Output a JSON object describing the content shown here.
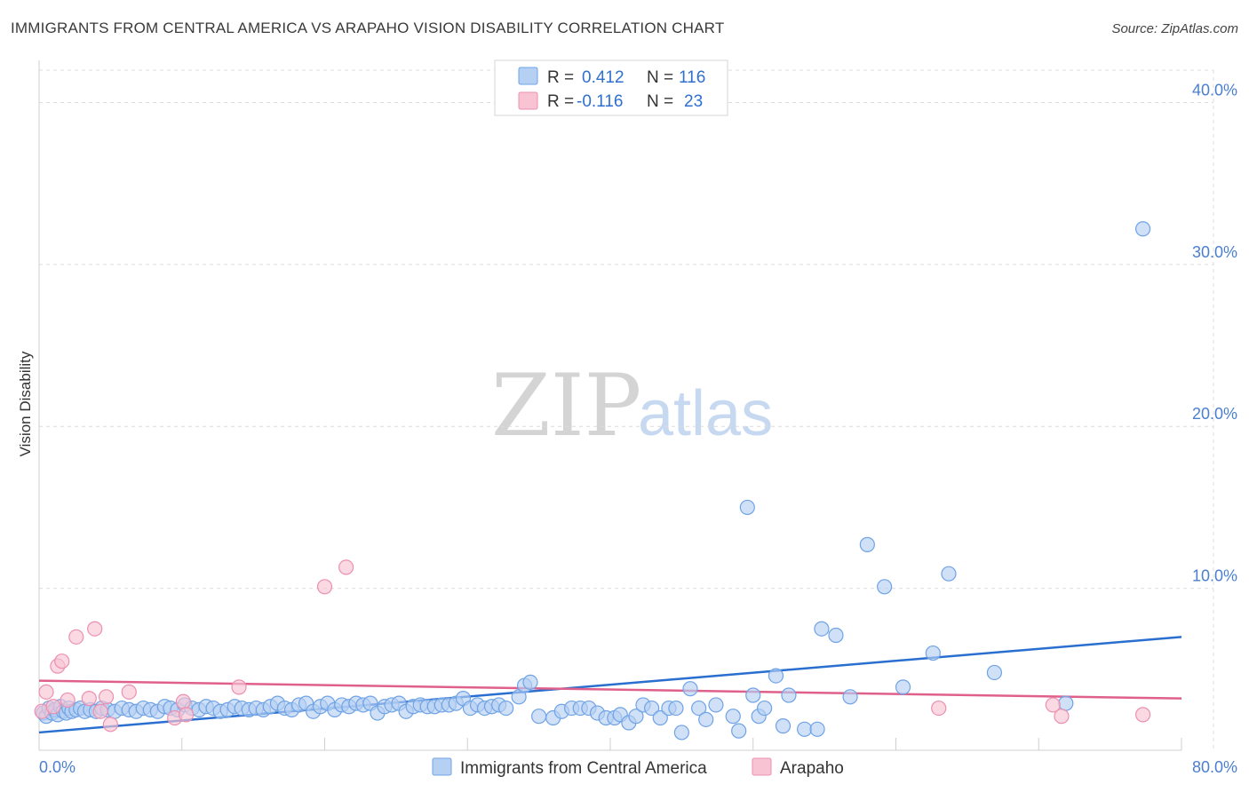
{
  "header": {
    "title": "IMMIGRANTS FROM CENTRAL AMERICA VS ARAPAHO VISION DISABILITY CORRELATION CHART",
    "source": "Source: ZipAtlas.com"
  },
  "watermark": {
    "zip": "ZIP",
    "atlas": "atlas"
  },
  "legend": {
    "r_label": "R =",
    "n_label": "N =",
    "rows": [
      {
        "r": "0.412",
        "n": "116",
        "color": "#a9c8f0"
      },
      {
        "r": "-0.116",
        "n": "23",
        "color": "#f6b9cc"
      }
    ]
  },
  "bottom_legend": [
    {
      "label": "Immigrants from Central America",
      "color": "#a9c8f0"
    },
    {
      "label": "Arapaho",
      "color": "#f6b9cc"
    }
  ],
  "chart_data": {
    "type": "scatter",
    "title": "IMMIGRANTS FROM CENTRAL AMERICA VS ARAPAHO VISION DISABILITY CORRELATION CHART",
    "xlabel": "",
    "ylabel": "Vision Disability",
    "xlim": [
      0,
      80
    ],
    "ylim": [
      0,
      42
    ],
    "x_tick_labels": [
      "0.0%",
      "80.0%"
    ],
    "y_ticks": [
      10,
      20,
      30,
      40
    ],
    "y_tick_labels": [
      "10.0%",
      "20.0%",
      "30.0%",
      "40.0%"
    ],
    "grid": true,
    "series": [
      {
        "name": "Immigrants from Central America",
        "color": "#6fa3e6",
        "fill": "#b5d0f3",
        "trend": {
          "x0": 0,
          "y0": 1.1,
          "x1": 80,
          "y1": 7.0,
          "color": "#2a6fd0"
        },
        "points": [
          [
            0.3,
            2.3
          ],
          [
            0.5,
            2.1
          ],
          [
            0.7,
            2.6
          ],
          [
            0.9,
            2.3
          ],
          [
            1.1,
            2.5
          ],
          [
            1.3,
            2.2
          ],
          [
            1.5,
            2.7
          ],
          [
            1.7,
            2.4
          ],
          [
            1.9,
            2.3
          ],
          [
            2.1,
            2.6
          ],
          [
            2.3,
            2.4
          ],
          [
            2.6,
            2.5
          ],
          [
            2.9,
            2.6
          ],
          [
            3.2,
            2.4
          ],
          [
            3.6,
            2.5
          ],
          [
            4.0,
            2.4
          ],
          [
            4.4,
            2.6
          ],
          [
            4.8,
            2.5
          ],
          [
            5.3,
            2.4
          ],
          [
            5.8,
            2.6
          ],
          [
            6.3,
            2.5
          ],
          [
            6.8,
            2.4
          ],
          [
            7.3,
            2.6
          ],
          [
            7.8,
            2.5
          ],
          [
            8.3,
            2.4
          ],
          [
            8.8,
            2.7
          ],
          [
            9.2,
            2.6
          ],
          [
            9.7,
            2.5
          ],
          [
            10.2,
            2.8
          ],
          [
            10.7,
            2.6
          ],
          [
            11.2,
            2.5
          ],
          [
            11.7,
            2.7
          ],
          [
            12.2,
            2.6
          ],
          [
            12.7,
            2.4
          ],
          [
            13.2,
            2.5
          ],
          [
            13.7,
            2.7
          ],
          [
            14.2,
            2.6
          ],
          [
            14.7,
            2.5
          ],
          [
            15.2,
            2.6
          ],
          [
            15.7,
            2.5
          ],
          [
            16.2,
            2.7
          ],
          [
            16.7,
            2.9
          ],
          [
            17.2,
            2.6
          ],
          [
            17.7,
            2.5
          ],
          [
            18.2,
            2.8
          ],
          [
            18.7,
            2.9
          ],
          [
            19.2,
            2.4
          ],
          [
            19.7,
            2.7
          ],
          [
            20.2,
            2.9
          ],
          [
            20.7,
            2.5
          ],
          [
            21.2,
            2.8
          ],
          [
            21.7,
            2.7
          ],
          [
            22.2,
            2.9
          ],
          [
            22.7,
            2.8
          ],
          [
            23.2,
            2.9
          ],
          [
            23.7,
            2.3
          ],
          [
            24.2,
            2.7
          ],
          [
            24.7,
            2.8
          ],
          [
            25.2,
            2.9
          ],
          [
            25.7,
            2.4
          ],
          [
            26.2,
            2.7
          ],
          [
            26.7,
            2.8
          ],
          [
            27.2,
            2.7
          ],
          [
            27.7,
            2.7
          ],
          [
            28.2,
            2.8
          ],
          [
            28.7,
            2.8
          ],
          [
            29.2,
            2.9
          ],
          [
            29.7,
            3.2
          ],
          [
            30.2,
            2.6
          ],
          [
            30.7,
            2.8
          ],
          [
            31.2,
            2.6
          ],
          [
            31.7,
            2.7
          ],
          [
            32.2,
            2.8
          ],
          [
            32.7,
            2.6
          ],
          [
            33.6,
            3.3
          ],
          [
            34.0,
            4.0
          ],
          [
            34.4,
            4.2
          ],
          [
            35.0,
            2.1
          ],
          [
            36.0,
            2.0
          ],
          [
            36.6,
            2.4
          ],
          [
            37.3,
            2.6
          ],
          [
            37.9,
            2.6
          ],
          [
            38.5,
            2.6
          ],
          [
            39.1,
            2.3
          ],
          [
            39.7,
            2.0
          ],
          [
            40.3,
            2.0
          ],
          [
            40.7,
            2.2
          ],
          [
            41.3,
            1.7
          ],
          [
            41.8,
            2.1
          ],
          [
            42.3,
            2.8
          ],
          [
            42.9,
            2.6
          ],
          [
            43.5,
            2.0
          ],
          [
            44.1,
            2.6
          ],
          [
            44.6,
            2.6
          ],
          [
            45.0,
            1.1
          ],
          [
            45.6,
            3.8
          ],
          [
            46.2,
            2.6
          ],
          [
            46.7,
            1.9
          ],
          [
            47.4,
            2.8
          ],
          [
            48.6,
            2.1
          ],
          [
            49.0,
            1.2
          ],
          [
            49.6,
            15.0
          ],
          [
            50.0,
            3.4
          ],
          [
            50.4,
            2.1
          ],
          [
            50.8,
            2.6
          ],
          [
            51.6,
            4.6
          ],
          [
            52.1,
            1.5
          ],
          [
            52.5,
            3.4
          ],
          [
            53.6,
            1.3
          ],
          [
            54.5,
            1.3
          ],
          [
            54.8,
            7.5
          ],
          [
            55.8,
            7.1
          ],
          [
            56.8,
            3.3
          ],
          [
            58.0,
            12.7
          ],
          [
            59.2,
            10.1
          ],
          [
            60.5,
            3.9
          ],
          [
            62.6,
            6.0
          ],
          [
            63.7,
            10.9
          ],
          [
            66.9,
            4.8
          ],
          [
            71.9,
            2.9
          ],
          [
            77.3,
            32.2
          ]
        ]
      },
      {
        "name": "Arapaho",
        "color": "#ec8fb0",
        "fill": "#f8c4d4",
        "trend": {
          "x0": 0,
          "y0": 4.3,
          "x1": 80,
          "y1": 3.2,
          "color": "#e0608c"
        },
        "points": [
          [
            0.2,
            2.4
          ],
          [
            0.5,
            3.6
          ],
          [
            1.0,
            2.7
          ],
          [
            1.3,
            5.2
          ],
          [
            1.6,
            5.5
          ],
          [
            2.0,
            3.1
          ],
          [
            2.6,
            7.0
          ],
          [
            3.5,
            3.2
          ],
          [
            3.9,
            7.5
          ],
          [
            4.3,
            2.4
          ],
          [
            4.7,
            3.3
          ],
          [
            5.0,
            1.6
          ],
          [
            6.3,
            3.6
          ],
          [
            9.5,
            2.0
          ],
          [
            10.1,
            3.0
          ],
          [
            10.3,
            2.2
          ],
          [
            14.0,
            3.9
          ],
          [
            20.0,
            10.1
          ],
          [
            21.5,
            11.3
          ],
          [
            63.0,
            2.6
          ],
          [
            71.0,
            2.8
          ],
          [
            71.6,
            2.1
          ],
          [
            77.3,
            2.2
          ]
        ]
      }
    ]
  }
}
